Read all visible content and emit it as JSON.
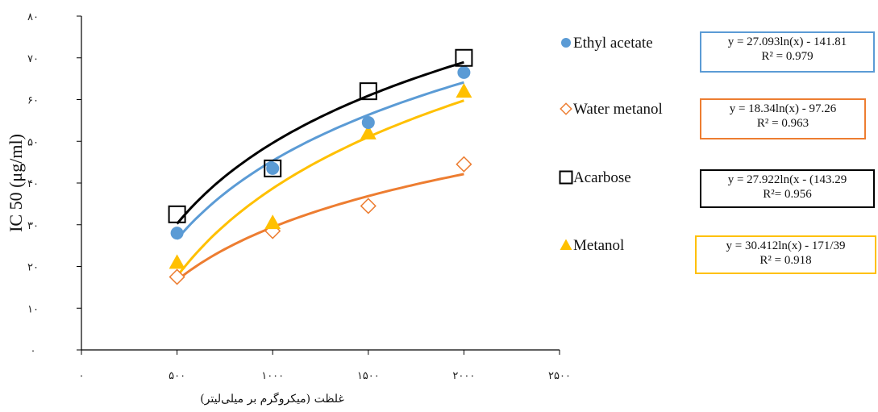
{
  "chart_data": {
    "type": "scatter",
    "title": "",
    "xlabel": "غلظت (میکروگرم بر میلی‌لیتر)",
    "ylabel": "IC 50 (μg/ml)",
    "xlim": [
      0,
      2500
    ],
    "ylim": [
      0,
      80
    ],
    "x_ticks": [
      0,
      500,
      1000,
      1500,
      2000,
      2500
    ],
    "x_tick_labels": [
      "۰",
      "۵۰۰",
      "۱۰۰۰",
      "۱۵۰۰",
      "۲۰۰۰",
      "۲۵۰۰"
    ],
    "y_ticks": [
      0,
      10,
      20,
      30,
      40,
      50,
      60,
      70,
      80
    ],
    "y_tick_labels": [
      "۰",
      "۱۰",
      "۲۰",
      "۳۰",
      "۴۰",
      "۵۰",
      "۶۰",
      "۷۰",
      "۸۰"
    ],
    "grid": false,
    "legend_position": "right",
    "trendline": "logarithmic",
    "series": [
      {
        "name": "Ethyl acetate",
        "marker": "circle",
        "color": "#5B9BD5",
        "x": [
          500,
          1000,
          1500,
          2000
        ],
        "y": [
          28,
          43.5,
          54.5,
          66.5
        ],
        "fit": {
          "a": 27.093,
          "b": -141.81
        },
        "equation": "y = 27.093ln(x) - 141.81",
        "r2": "R² = 0.979"
      },
      {
        "name": "Water metanol",
        "marker": "diamond",
        "color": "#ED7D31",
        "x": [
          500,
          1000,
          1500,
          2000
        ],
        "y": [
          17.5,
          28.5,
          34.5,
          44.5
        ],
        "fit": {
          "a": 18.34,
          "b": -97.26
        },
        "equation": "y = 18.34ln(x) - 97.26",
        "r2": "R² = 0.963"
      },
      {
        "name": "Acarbose",
        "marker": "square",
        "color": "#000000",
        "x": [
          500,
          1000,
          1500,
          2000
        ],
        "y": [
          32.5,
          43.5,
          62,
          70
        ],
        "fit": {
          "a": 27.922,
          "b": -143.29
        },
        "equation": "y = 27.922ln(x - (143.29",
        "r2": "R²= 0.956"
      },
      {
        "name": "Metanol",
        "marker": "triangle",
        "color": "#FFC000",
        "x": [
          500,
          1000,
          1500,
          2000
        ],
        "y": [
          21,
          30.5,
          52,
          62
        ],
        "fit": {
          "a": 30.412,
          "b": -171.39
        },
        "equation": "y = 30.412ln(x) - 171/39",
        "r2": "R² = 0.918"
      }
    ]
  }
}
